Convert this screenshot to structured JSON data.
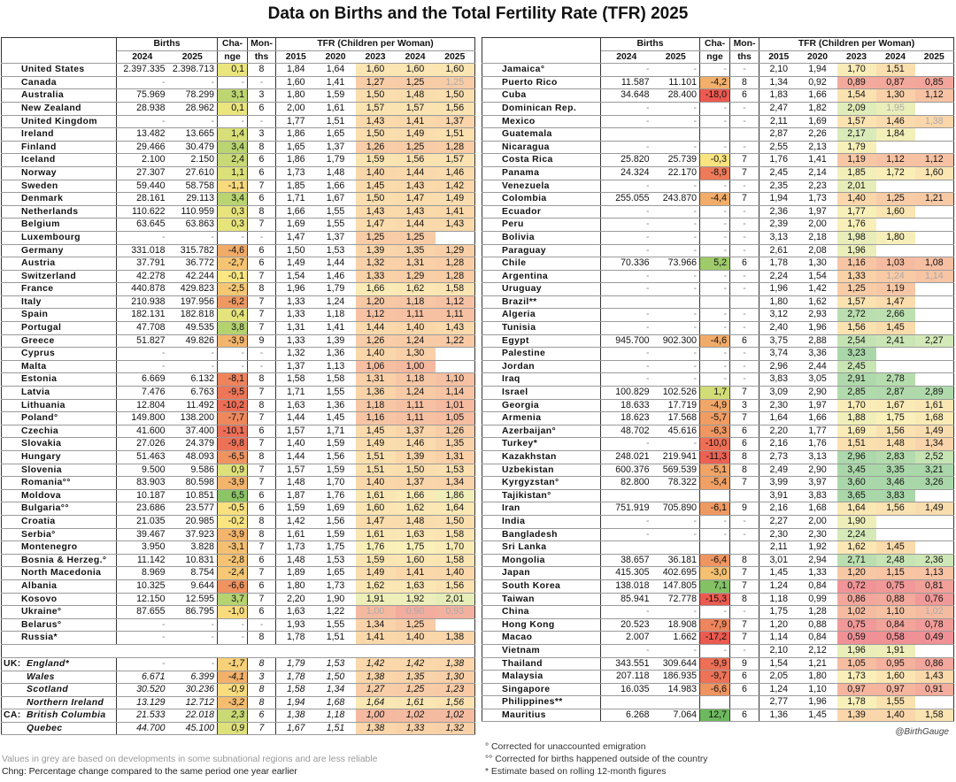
{
  "title": "Data on Births and the Total Fertility Rate (TFR) 2025",
  "headers": {
    "births": "Births",
    "change_1": "Cha-",
    "change_2": "nge",
    "months_1": "Mon-",
    "months_2": "ths",
    "tfr": "TFR (Children per Woman)",
    "y2024": "2024",
    "y2025": "2025",
    "y2015": "2015",
    "y2020": "2020",
    "y2023": "2023"
  },
  "left_rows": [
    [
      "United States",
      "2.397.335",
      "2.398.713",
      "0,1",
      "8",
      "1,84",
      "1,64",
      "1,60",
      "1,60",
      "1,60"
    ],
    [
      "Canada",
      "-",
      "-",
      "-",
      "-",
      "1,60",
      "1,41",
      "1,27",
      "1,25",
      "~1,25"
    ],
    [
      "Australia",
      "75.969",
      "78.299",
      "3,1",
      "3",
      "1,80",
      "1,59",
      "1,50",
      "1,48",
      "1,50"
    ],
    [
      "New Zealand",
      "28.938",
      "28.962",
      "0,1",
      "6",
      "2,00",
      "1,61",
      "1,57",
      "1,57",
      "1,56"
    ],
    [
      "United Kingdom",
      "-",
      "-",
      "-",
      "-",
      "1,77",
      "1,51",
      "1,43",
      "1,41",
      "1,37"
    ],
    [
      "Ireland",
      "13.482",
      "13.665",
      "1,4",
      "3",
      "1,86",
      "1,65",
      "1,50",
      "1,49",
      "1,51"
    ],
    [
      "Finland",
      "29.466",
      "30.479",
      "3,4",
      "8",
      "1,65",
      "1,37",
      "1,26",
      "1,25",
      "1,28"
    ],
    [
      "Iceland",
      "2.100",
      "2.150",
      "2,4",
      "6",
      "1,86",
      "1,79",
      "1,59",
      "1,56",
      "1,57"
    ],
    [
      "Norway",
      "27.307",
      "27.610",
      "1,1",
      "6",
      "1,73",
      "1,48",
      "1,40",
      "1,44",
      "1,46"
    ],
    [
      "Sweden",
      "59.440",
      "58.758",
      "-1,1",
      "7",
      "1,85",
      "1,66",
      "1,45",
      "1,43",
      "1,42"
    ],
    [
      "Denmark",
      "28.161",
      "29.113",
      "3,4",
      "6",
      "1,71",
      "1,67",
      "1,50",
      "1,47",
      "1,49"
    ],
    [
      "Netherlands",
      "110.622",
      "110.959",
      "0,3",
      "8",
      "1,66",
      "1,55",
      "1,43",
      "1,43",
      "1,41"
    ],
    [
      "Belgium",
      "63.645",
      "63.863",
      "0,3",
      "7",
      "1,69",
      "1,55",
      "1,47",
      "1,44",
      "1,43"
    ],
    [
      "Luxembourg",
      "-",
      "-",
      "-",
      "-",
      "1,47",
      "1,37",
      "1,25",
      "1,25",
      ""
    ],
    [
      "Germany",
      "331.018",
      "315.782",
      "-4,6",
      "6",
      "1,50",
      "1,53",
      "1,39",
      "1,35",
      "1,29"
    ],
    [
      "Austria",
      "37.791",
      "36.772",
      "-2,7",
      "6",
      "1,49",
      "1,44",
      "1,32",
      "1,31",
      "1,28"
    ],
    [
      "Switzerland",
      "42.278",
      "42.244",
      "-0,1",
      "7",
      "1,54",
      "1,46",
      "1,33",
      "1,29",
      "1,28"
    ],
    [
      "France",
      "440.878",
      "429.823",
      "-2,5",
      "8",
      "1,96",
      "1,79",
      "1,66",
      "1,62",
      "1,58"
    ],
    [
      "Italy",
      "210.938",
      "197.956",
      "-6,2",
      "7",
      "1,33",
      "1,24",
      "1,20",
      "1,18",
      "1,12"
    ],
    [
      "Spain",
      "182.131",
      "182.818",
      "0,4",
      "7",
      "1,33",
      "1,18",
      "1,12",
      "1,11",
      "1,11"
    ],
    [
      "Portugal",
      "47.708",
      "49.535",
      "3,8",
      "7",
      "1,31",
      "1,41",
      "1,44",
      "1,40",
      "1,43"
    ],
    [
      "Greece",
      "51.827",
      "49.826",
      "-3,9",
      "9",
      "1,33",
      "1,39",
      "1,26",
      "1,24",
      "1,22"
    ],
    [
      "Cyprus",
      "-",
      "-",
      "-",
      "-",
      "1,32",
      "1,36",
      "1,40",
      "1,30",
      ""
    ],
    [
      "Malta",
      "-",
      "-",
      "-",
      "-",
      "1,37",
      "1,13",
      "1,06",
      "1,00",
      ""
    ],
    [
      "Estonia",
      "6.669",
      "6.132",
      "-8,1",
      "8",
      "1,58",
      "1,58",
      "1,31",
      "1,18",
      "1,10"
    ],
    [
      "Latvia",
      "7.476",
      "6.763",
      "-9,5",
      "7",
      "1,71",
      "1,55",
      "1,36",
      "1,24",
      "1,14"
    ],
    [
      "Lithuania",
      "12.804",
      "11.492",
      "-10,2",
      "8",
      "1,63",
      "1,36",
      "1,18",
      "1,11",
      "1,01"
    ],
    [
      "Poland°",
      "149.800",
      "138.200",
      "-7,7",
      "7",
      "1,44",
      "1,45",
      "1,16",
      "1,11",
      "1,05"
    ],
    [
      "Czechia",
      "41.600",
      "37.400",
      "-10,1",
      "6",
      "1,57",
      "1,71",
      "1,45",
      "1,37",
      "1,26"
    ],
    [
      "Slovakia",
      "27.026",
      "24.379",
      "-9,8",
      "7",
      "1,40",
      "1,59",
      "1,49",
      "1,46",
      "1,35"
    ],
    [
      "Hungary",
      "51.463",
      "48.093",
      "-6,5",
      "8",
      "1,44",
      "1,56",
      "1,51",
      "1,39",
      "1,31"
    ],
    [
      "Slovenia",
      "9.500",
      "9.586",
      "0,9",
      "7",
      "1,57",
      "1,59",
      "1,51",
      "1,50",
      "1,53"
    ],
    [
      "Romania°°",
      "83.903",
      "80.598",
      "-3,9",
      "7",
      "1,48",
      "1,70",
      "1,40",
      "1,37",
      "1,34"
    ],
    [
      "Moldova",
      "10.187",
      "10.851",
      "6,5",
      "6",
      "1,87",
      "1,76",
      "1,61",
      "1,66",
      "1,86"
    ],
    [
      "Bulgaria°°",
      "23.686",
      "23.577",
      "-0,5",
      "6",
      "1,59",
      "1,69",
      "1,60",
      "1,62",
      "1,64"
    ],
    [
      "Croatia",
      "21.035",
      "20.985",
      "-0,2",
      "8",
      "1,42",
      "1,56",
      "1,47",
      "1,48",
      "1,50"
    ],
    [
      "Serbia°",
      "39.467",
      "37.923",
      "-3,9",
      "8",
      "1,61",
      "1,59",
      "1,61",
      "1,63",
      "1,58"
    ],
    [
      "Montenegro",
      "3.950",
      "3.828",
      "-3,1",
      "7",
      "1,73",
      "1,75",
      "1,76",
      "1,75",
      "1,70"
    ],
    [
      "Bosnia & Herzeg.°",
      "11.142",
      "10.831",
      "-2,8",
      "6",
      "1,48",
      "1,53",
      "1,59",
      "1,60",
      "1,58"
    ],
    [
      "North Macedonia",
      "8.969",
      "8.754",
      "-2,4",
      "7",
      "1,89",
      "1,65",
      "1,49",
      "1,41",
      "1,40"
    ],
    [
      "Albania",
      "10.325",
      "9.644",
      "-6,6",
      "6",
      "1,80",
      "1,73",
      "1,62",
      "1,63",
      "1,56"
    ],
    [
      "Kosovo",
      "12.150",
      "12.595",
      "3,7",
      "7",
      "2,20",
      "1,90",
      "1,91",
      "1,92",
      "2,01"
    ],
    [
      "Ukraine°",
      "87.655",
      "86.795",
      "-1,0",
      "6",
      "1,63",
      "1,22",
      "~1,00",
      "~0,90",
      "~0,93"
    ],
    [
      "Belarus°",
      "-",
      "-",
      "-",
      "-",
      "1,93",
      "1,55",
      "1,34",
      "1,25",
      ""
    ],
    [
      "Russia*",
      "-",
      "-",
      "-",
      "8",
      "1,78",
      "1,51",
      "1,41",
      "1,40",
      "1,38"
    ]
  ],
  "sub_rows": [
    [
      "UK:",
      "England*",
      "-",
      "-",
      "-1,7",
      "8",
      "1,79",
      "1,53",
      "1,42",
      "1,42",
      "1,38"
    ],
    [
      "",
      "Wales",
      "6.671",
      "6.399",
      "-4,1",
      "3",
      "1,78",
      "1,50",
      "1,38",
      "1,35",
      "1,30"
    ],
    [
      "",
      "Scotland",
      "30.520",
      "30.236",
      "-0,9",
      "8",
      "1,58",
      "1,34",
      "1,27",
      "1,25",
      "1,23"
    ],
    [
      "",
      "Northern Ireland",
      "13.129",
      "12.712",
      "-3,2",
      "8",
      "1,94",
      "1,68",
      "1,64",
      "1,61",
      "1,56"
    ],
    [
      "CA:",
      "British Columbia",
      "21.533",
      "22.018",
      "2,3",
      "6",
      "1,38",
      "1,18",
      "1,00",
      "1,02",
      "1,02"
    ],
    [
      "",
      "Quebec",
      "44.700",
      "45.100",
      "0,9",
      "7",
      "1,67",
      "1,51",
      "1,38",
      "1,33",
      "1,32"
    ]
  ],
  "right_rows": [
    [
      "Jamaica°",
      "-",
      "-",
      "-",
      "-",
      "2,10",
      "1,94",
      "1,70",
      "1,51",
      ""
    ],
    [
      "Puerto Rico",
      "11.587",
      "11.101",
      "-4,2",
      "8",
      "1,34",
      "0,92",
      "0,89",
      "0,87",
      "0,85"
    ],
    [
      "Cuba",
      "34.648",
      "28.400",
      "-18,0",
      "6",
      "1,83",
      "1,66",
      "1,54",
      "1,30",
      "1,12"
    ],
    [
      "Dominican Rep.",
      "-",
      "-",
      "-",
      "-",
      "2,47",
      "1,82",
      "2,09",
      "~1,95",
      ""
    ],
    [
      "Mexico",
      "-",
      "-",
      "-",
      "-",
      "2,11",
      "1,69",
      "1,57",
      "1,46",
      "~1,38"
    ],
    [
      "Guatemala",
      "",
      "",
      "",
      "",
      "2,87",
      "2,26",
      "2,17",
      "1,84",
      ""
    ],
    [
      "Nicaragua",
      "-",
      "-",
      "-",
      "-",
      "2,55",
      "2,13",
      "1,79",
      "",
      ""
    ],
    [
      "Costa Rica",
      "25.820",
      "25.739",
      "-0,3",
      "7",
      "1,76",
      "1,41",
      "1,19",
      "1,12",
      "1,12"
    ],
    [
      "Panama",
      "24.324",
      "22.170",
      "-8,9",
      "7",
      "2,45",
      "2,14",
      "1,85",
      "1,72",
      "1,60"
    ],
    [
      "Venezuela",
      "-",
      "-",
      "-",
      "-",
      "2,35",
      "2,23",
      "2,01",
      "",
      ""
    ],
    [
      "Colombia",
      "255.055",
      "243.870",
      "-4,4",
      "7",
      "1,94",
      "1,73",
      "1,40",
      "1,25",
      "1,21"
    ],
    [
      "Ecuador",
      "-",
      "-",
      "-",
      "-",
      "2,36",
      "1,97",
      "1,77",
      "1,60",
      ""
    ],
    [
      "Peru",
      "-",
      "-",
      "-",
      "-",
      "2,39",
      "2,00",
      "1,76",
      "",
      ""
    ],
    [
      "Bolivia",
      "-",
      "-",
      "-",
      "-",
      "3,13",
      "2,18",
      "1,98",
      "1,80",
      ""
    ],
    [
      "Paraguay",
      "-",
      "-",
      "-",
      "-",
      "2,61",
      "2,08",
      "1,96",
      "",
      ""
    ],
    [
      "Chile",
      "70.336",
      "73.966",
      "5,2",
      "6",
      "1,78",
      "1,30",
      "1,16",
      "1,03",
      "1,08"
    ],
    [
      "Argentina",
      "-",
      "-",
      "-",
      "-",
      "2,24",
      "1,54",
      "1,33",
      "~1,24",
      "~1,14"
    ],
    [
      "Uruguay",
      "-",
      "-",
      "-",
      "-",
      "1,96",
      "1,42",
      "1,25",
      "1,19",
      ""
    ],
    [
      "Brazil**",
      "",
      "",
      "",
      "",
      "1,80",
      "1,62",
      "1,57",
      "1,47",
      ""
    ],
    [
      "Algeria",
      "-",
      "-",
      "-",
      "-",
      "3,12",
      "2,93",
      "2,72",
      "2,66",
      ""
    ],
    [
      "Tunisia",
      "-",
      "-",
      "-",
      "-",
      "2,40",
      "1,96",
      "1,56",
      "1,45",
      ""
    ],
    [
      "Egypt",
      "945.700",
      "902.300",
      "-4,6",
      "6",
      "3,75",
      "2,88",
      "2,54",
      "2,41",
      "2,27"
    ],
    [
      "Palestine",
      "-",
      "-",
      "-",
      "-",
      "3,74",
      "3,36",
      "3,23",
      "",
      ""
    ],
    [
      "Jordan",
      "-",
      "-",
      "-",
      "-",
      "2,96",
      "2,44",
      "2,45",
      "",
      ""
    ],
    [
      "Iraq",
      "-",
      "-",
      "-",
      "-",
      "3,83",
      "3,05",
      "2,91",
      "2,78",
      ""
    ],
    [
      "Israel",
      "100.829",
      "102.526",
      "1,7",
      "7",
      "3,09",
      "2,90",
      "2,85",
      "2,87",
      "2,89"
    ],
    [
      "Georgia",
      "18.633",
      "17.719",
      "-4,9",
      "3",
      "2,30",
      "1,97",
      "1,70",
      "1,67",
      "1,61"
    ],
    [
      "Armenia",
      "18.623",
      "17.568",
      "-5,7",
      "7",
      "1,64",
      "1,66",
      "1,88",
      "1,75",
      "1,68"
    ],
    [
      "Azerbaijan°",
      "48.702",
      "45.616",
      "-6,3",
      "6",
      "2,20",
      "1,77",
      "1,69",
      "1,56",
      "1,49"
    ],
    [
      "Turkey*",
      "-",
      "-",
      "-10,0",
      "6",
      "2,16",
      "1,76",
      "1,51",
      "1,48",
      "1,34"
    ],
    [
      "Kazakhstan",
      "248.021",
      "219.941",
      "-11,3",
      "8",
      "2,73",
      "3,13",
      "2,96",
      "2,83",
      "2,52"
    ],
    [
      "Uzbekistan",
      "600.376",
      "569.539",
      "-5,1",
      "8",
      "2,49",
      "2,90",
      "3,45",
      "3,35",
      "3,21"
    ],
    [
      "Kyrgyzstan°",
      "82.800",
      "78.322",
      "-5,4",
      "7",
      "3,99",
      "3,97",
      "3,60",
      "3,46",
      "3,26"
    ],
    [
      "Tajikistan°",
      "",
      "",
      "",
      "",
      "3,91",
      "3,83",
      "3,65",
      "3,83",
      ""
    ],
    [
      "Iran",
      "751.919",
      "705.890",
      "-6,1",
      "9",
      "2,16",
      "1,68",
      "1,64",
      "1,56",
      "1,49"
    ],
    [
      "India",
      "-",
      "-",
      "-",
      "-",
      "2,27",
      "2,00",
      "1,90",
      "",
      ""
    ],
    [
      "Bangladesh",
      "-",
      "-",
      "-",
      "-",
      "2,30",
      "2,30",
      "2,24",
      "",
      ""
    ],
    [
      "Sri Lanka",
      "",
      "",
      "",
      "",
      "2,11",
      "1,92",
      "1,62",
      "1,45",
      ""
    ],
    [
      "Mongolia",
      "38.657",
      "36.181",
      "-6,4",
      "8",
      "3,01",
      "2,94",
      "2,71",
      "2,48",
      "2,36"
    ],
    [
      "Japan",
      "415.305",
      "402.695",
      "-3,0",
      "7",
      "1,45",
      "1,33",
      "1,20",
      "1,15",
      "1,13"
    ],
    [
      "South Korea",
      "138.018",
      "147.805",
      "7,1",
      "7",
      "1,24",
      "0,84",
      "0,72",
      "0,75",
      "0,81"
    ],
    [
      "Taiwan",
      "85.941",
      "72.778",
      "-15,3",
      "8",
      "1,18",
      "0,99",
      "0,86",
      "0,88",
      "0,76"
    ],
    [
      "China",
      "-",
      "-",
      "-",
      "-",
      "1,75",
      "1,28",
      "1,02",
      "1,10",
      "~1,02"
    ],
    [
      "Hong Kong",
      "20.523",
      "18.908",
      "-7,9",
      "7",
      "1,20",
      "0,88",
      "0,75",
      "0,84",
      "0,78"
    ],
    [
      "Macao",
      "2.007",
      "1.662",
      "-17,2",
      "7",
      "1,14",
      "0,84",
      "0,59",
      "0,58",
      "0,49"
    ],
    [
      "Vietnam",
      "-",
      "-",
      "-",
      "-",
      "2,10",
      "2,12",
      "1,96",
      "1,91",
      ""
    ],
    [
      "Thailand",
      "343.551",
      "309.644",
      "-9,9",
      "9",
      "1,54",
      "1,21",
      "1,05",
      "0,95",
      "0,86"
    ],
    [
      "Malaysia",
      "207.118",
      "186.935",
      "-9,7",
      "6",
      "2,05",
      "1,80",
      "1,73",
      "1,60",
      "1,43"
    ],
    [
      "Singapore",
      "16.035",
      "14.983",
      "-6,6",
      "6",
      "1,24",
      "1,10",
      "0,97",
      "0,97",
      "0,91"
    ],
    [
      "Philippines**",
      "",
      "",
      "",
      "",
      "2,77",
      "1,96",
      "1,78",
      "1,55",
      ""
    ],
    [
      "Mauritius",
      "6.268",
      "7.064",
      "12,7",
      "6",
      "1,36",
      "1,45",
      "1,39",
      "1,40",
      "1,58"
    ]
  ],
  "watermark": "@BirthGauge",
  "notes_left": [
    "Values in grey are based on developments in some subnational regions and are less reliable",
    "Chng: Percentage change compared to the same period one year earlier"
  ],
  "notes_right": [
    "° Corrected for unaccounted emigration",
    "°° Corrected for births happened outside of the country",
    "* Estimate based on rolling 12-month figures"
  ],
  "colors": {
    "grey_text": "#aaaaaa",
    "border": "#333333"
  }
}
